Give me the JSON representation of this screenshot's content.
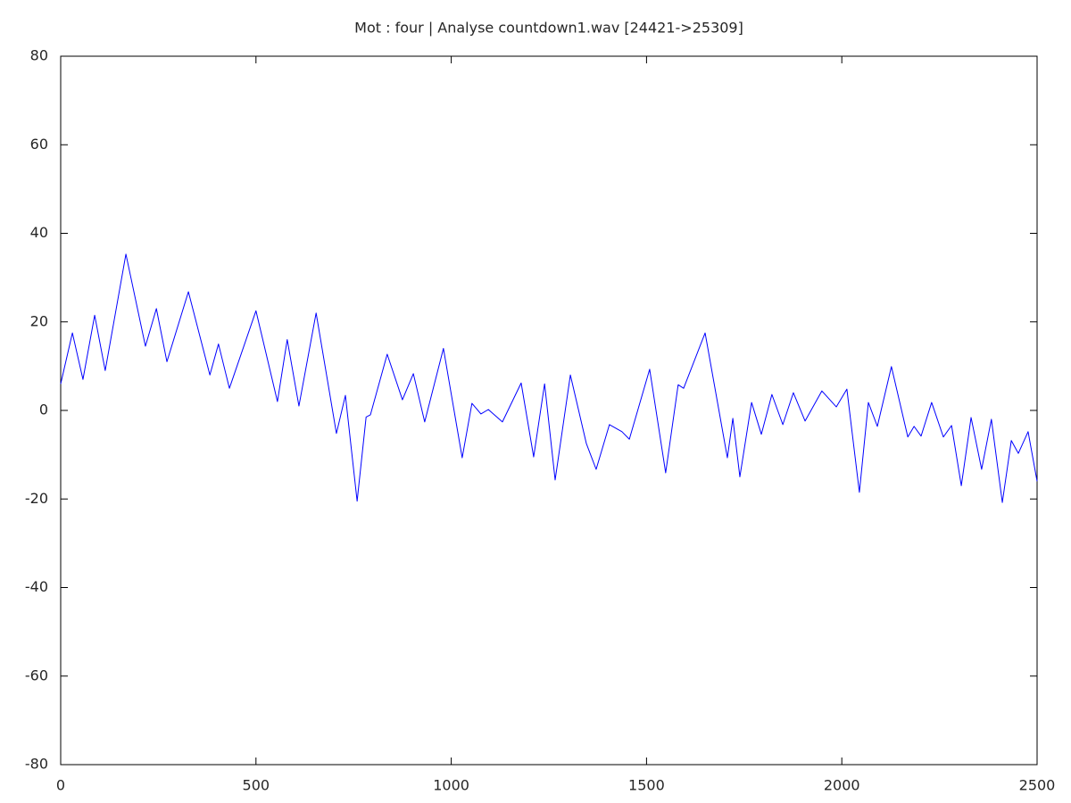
{
  "chart_data": {
    "type": "line",
    "title": "Mot : four  | Analyse countdown1.wav [24421->25309]",
    "color": "#0000ff",
    "x": [
      0,
      30,
      57,
      87,
      114,
      167,
      217,
      245,
      272,
      327,
      382,
      404,
      432,
      500,
      555,
      580,
      610,
      654,
      706,
      729,
      759,
      782,
      793,
      836,
      875,
      903,
      932,
      980,
      1028,
      1053,
      1076,
      1095,
      1131,
      1179,
      1211,
      1239,
      1266,
      1305,
      1346,
      1371,
      1405,
      1437,
      1456,
      1508,
      1549,
      1581,
      1595,
      1650,
      1707,
      1721,
      1739,
      1769,
      1794,
      1821,
      1849,
      1876,
      1906,
      1949,
      1986,
      2013,
      2045,
      2068,
      2091,
      2127,
      2169,
      2185,
      2203,
      2230,
      2260,
      2281,
      2306,
      2331,
      2358,
      2383,
      2411,
      2434,
      2452,
      2477,
      2500
    ],
    "values": [
      6,
      17.5,
      7,
      21.5,
      9,
      35.3,
      14.5,
      23,
      11,
      26.8,
      8,
      15,
      5,
      22.5,
      2,
      16,
      1,
      22,
      -5.2,
      3.4,
      -20.5,
      -1.5,
      -1,
      12.7,
      2.4,
      8.3,
      -2.6,
      14,
      -10.7,
      1.6,
      -0.8,
      0.2,
      -2.6,
      6.2,
      -10.5,
      6,
      -15.7,
      8,
      -7.5,
      -13.3,
      -3.2,
      -4.8,
      -6.5,
      9.3,
      -14.1,
      5.8,
      5,
      17.5,
      -10.7,
      -1.8,
      -15,
      1.8,
      -5.4,
      3.6,
      -3.2,
      4,
      -2.4,
      4.4,
      0.8,
      4.8,
      -18.5,
      1.8,
      -3.6,
      9.9,
      -6,
      -3.6,
      -5.8,
      1.8,
      -6,
      -3.4,
      -17,
      -1.6,
      -13.3,
      -2,
      -20.8,
      -6.8,
      -9.7,
      -4.8,
      -16
    ],
    "xlim": [
      0,
      2500
    ],
    "xticks": [
      0,
      500,
      1000,
      1500,
      2000,
      2500
    ],
    "ylim": [
      -80,
      80
    ],
    "yticks": [
      -80,
      -60,
      -40,
      -20,
      0,
      20,
      40,
      60,
      80
    ]
  }
}
